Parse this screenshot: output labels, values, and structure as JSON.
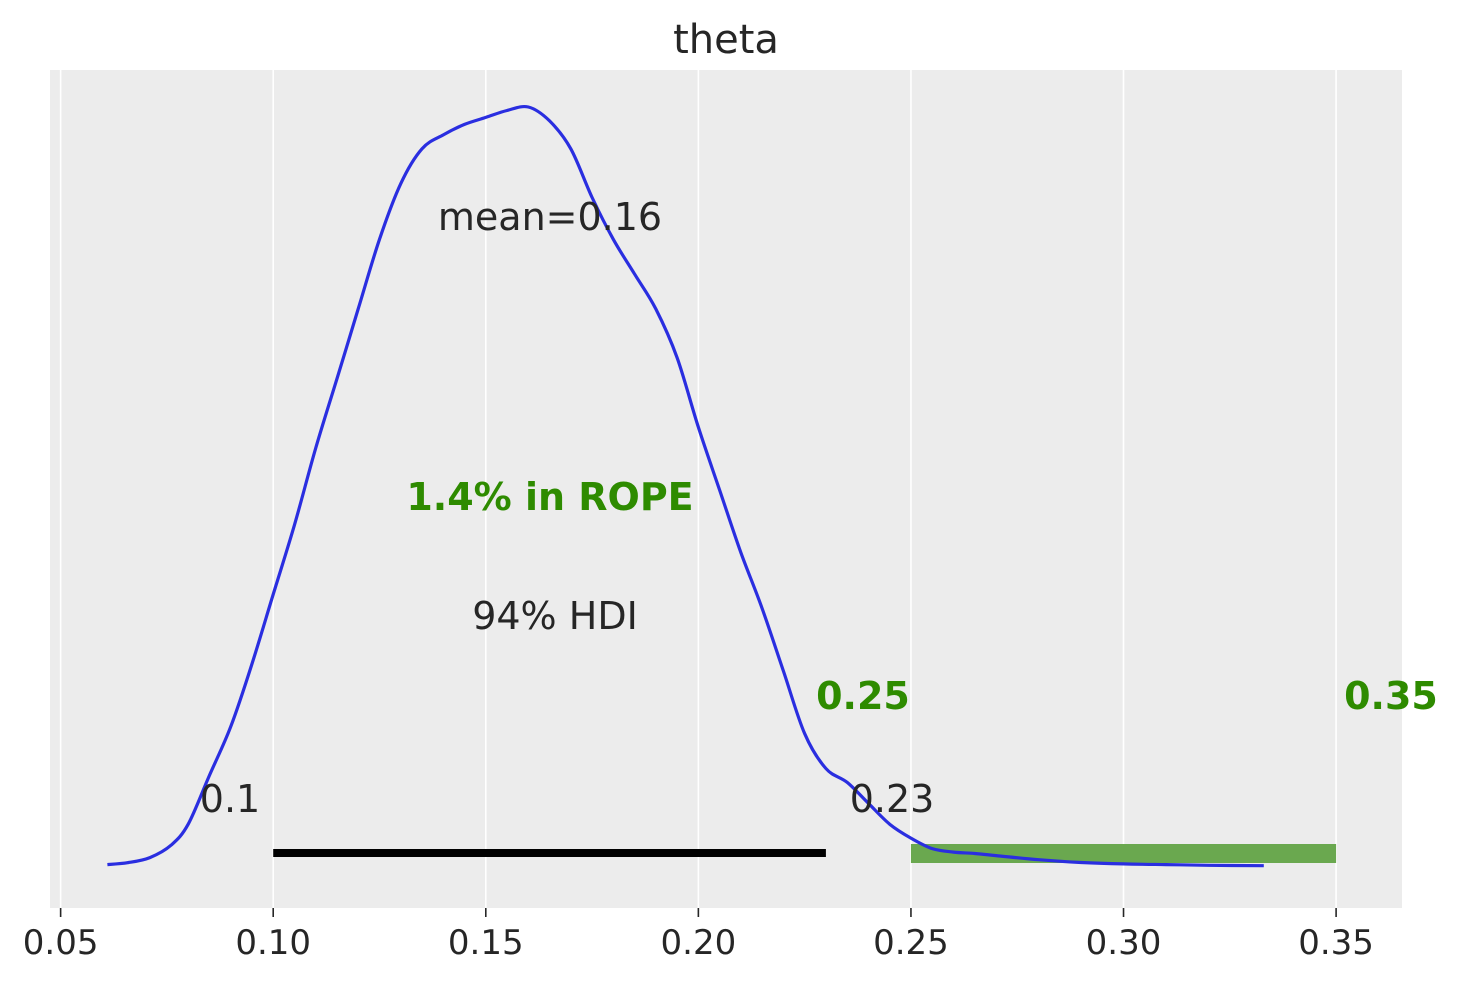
{
  "chart_data": {
    "type": "area",
    "title": "theta",
    "xlabel": "",
    "ylabel": "",
    "xlim": [
      0.0475,
      0.3655
    ],
    "ylim": [
      0,
      1.05
    ],
    "grid": true,
    "x_ticks": [
      0.05,
      0.1,
      0.15,
      0.2,
      0.25,
      0.3,
      0.35
    ],
    "x_tick_labels": [
      "0.05",
      "0.10",
      "0.15",
      "0.20",
      "0.25",
      "0.30",
      "0.35"
    ],
    "colors": {
      "background": "#ececec",
      "grid": "#ffffff",
      "density": "#2a2ee0",
      "hdi": "#000000",
      "rope": "#6aa84f",
      "rope_text": "#2e8b00",
      "text": "#262626"
    },
    "density": {
      "x": [
        0.061,
        0.066,
        0.071,
        0.076,
        0.08,
        0.085,
        0.09,
        0.095,
        0.1,
        0.105,
        0.11,
        0.115,
        0.12,
        0.125,
        0.13,
        0.135,
        0.14,
        0.145,
        0.15,
        0.155,
        0.16,
        0.165,
        0.17,
        0.175,
        0.18,
        0.185,
        0.19,
        0.195,
        0.2,
        0.205,
        0.21,
        0.215,
        0.22,
        0.225,
        0.23,
        0.235,
        0.24,
        0.245,
        0.25,
        0.255,
        0.26,
        0.265,
        0.27,
        0.28,
        0.29,
        0.3,
        0.31,
        0.32,
        0.333
      ],
      "y": [
        0.002,
        0.005,
        0.012,
        0.03,
        0.06,
        0.13,
        0.2,
        0.29,
        0.39,
        0.49,
        0.6,
        0.7,
        0.8,
        0.9,
        0.98,
        1.03,
        1.05,
        1.065,
        1.075,
        1.085,
        1.09,
        1.07,
        1.03,
        0.96,
        0.9,
        0.85,
        0.8,
        0.73,
        0.63,
        0.54,
        0.45,
        0.37,
        0.28,
        0.19,
        0.14,
        0.12,
        0.09,
        0.06,
        0.04,
        0.025,
        0.02,
        0.018,
        0.015,
        0.009,
        0.005,
        0.003,
        0.002,
        0.001,
        0.0005
      ]
    },
    "hdi": {
      "low": 0.1,
      "high": 0.23,
      "low_label": "0.1",
      "high_label": "0.23",
      "label": "94% HDI"
    },
    "rope": {
      "low": 0.25,
      "high": 0.35,
      "low_label": "0.25",
      "high_label": "0.35",
      "label": "1.4% in ROPE"
    },
    "mean": {
      "value": 0.16,
      "label": "mean=0.16"
    }
  }
}
